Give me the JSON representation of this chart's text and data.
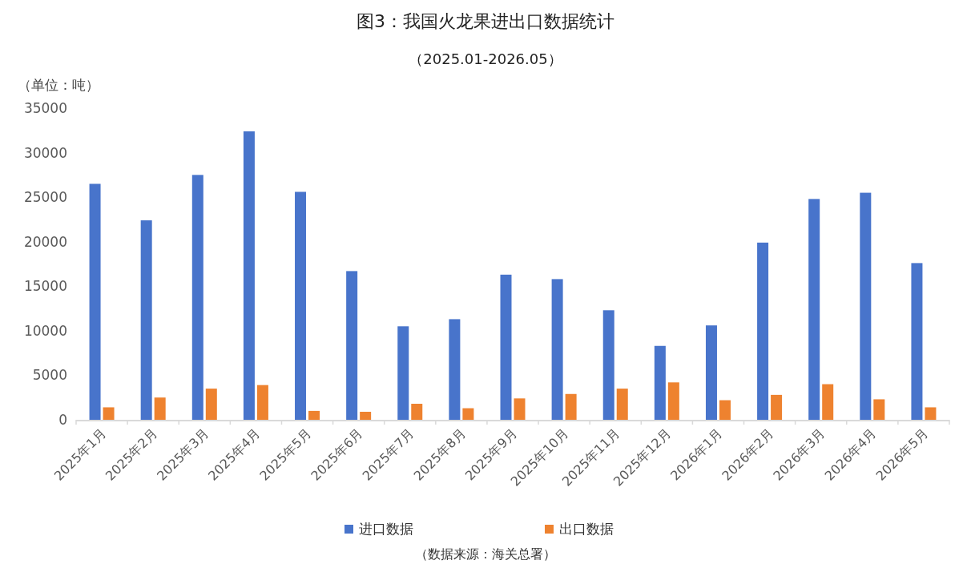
{
  "chart_data": {
    "type": "bar",
    "title": "图3：我国火龙果进出口数据统计",
    "subtitle": "（2025.01-2026.05）",
    "ylabel": "（单位：吨）",
    "categories": [
      "2025年1月",
      "2025年2月",
      "2025年3月",
      "2025年4月",
      "2025年5月",
      "2025年6月",
      "2025年7月",
      "2025年8月",
      "2025年9月",
      "2025年10月",
      "2025年11月",
      "2025年12月",
      "2026年1月",
      "2026年2月",
      "2026年3月",
      "2026年4月",
      "2026年5月"
    ],
    "series": [
      {
        "name": "进口数据",
        "color": "#4874cb",
        "values": [
          26500,
          22400,
          27500,
          32400,
          25600,
          16700,
          10500,
          11300,
          16300,
          15800,
          12300,
          8300,
          10600,
          19900,
          24800,
          25500,
          17600
        ]
      },
      {
        "name": "出口数据",
        "color": "#ee822f",
        "values": [
          1400,
          2500,
          3500,
          3900,
          1000,
          900,
          1800,
          1300,
          2400,
          2900,
          3500,
          4200,
          2200,
          2800,
          4000,
          2300,
          1400
        ]
      }
    ],
    "ylim": [
      0,
      35000
    ],
    "yticks": [
      0,
      5000,
      10000,
      15000,
      20000,
      25000,
      30000,
      35000
    ],
    "grid": false,
    "legend": "bottom",
    "annotations": [
      "（数据来源：海关总署）"
    ]
  }
}
